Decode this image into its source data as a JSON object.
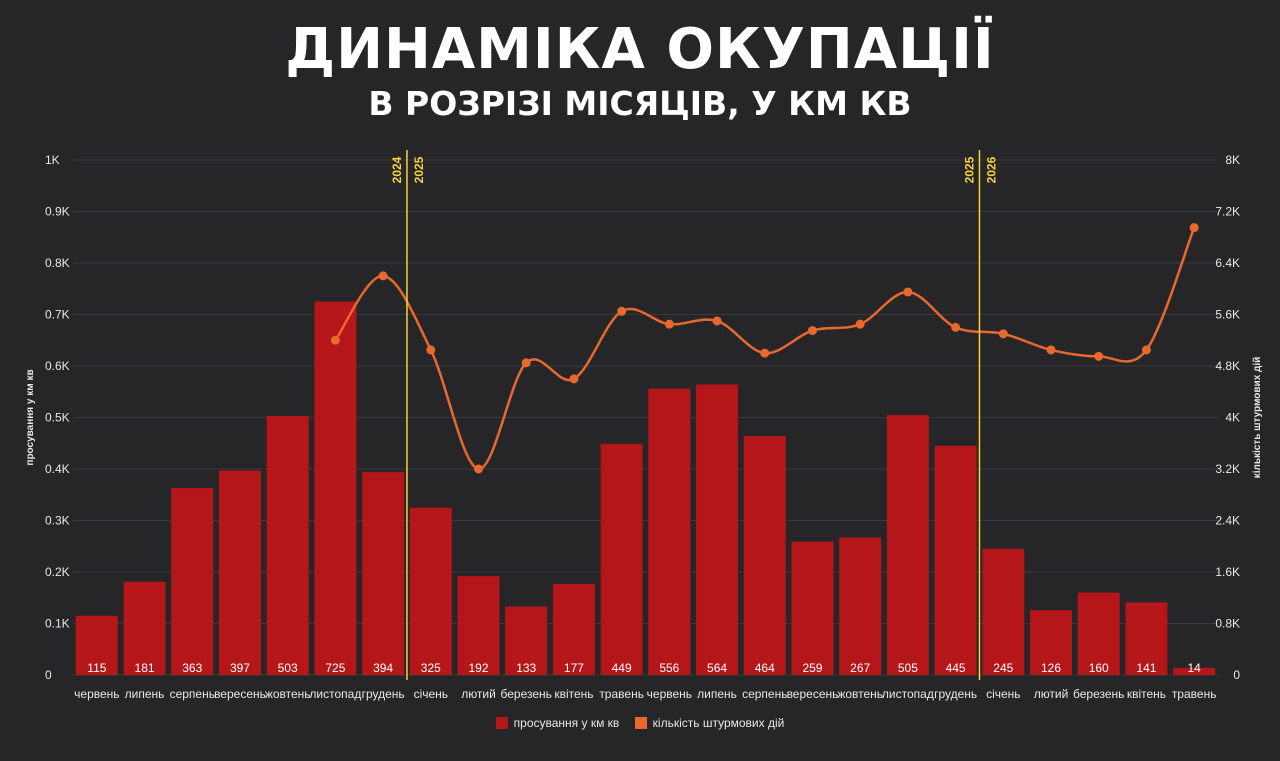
{
  "title": "ДИНАМІКА ОКУПАЦІЇ",
  "subtitle": "В РОЗРІЗІ МІСЯЦІВ, У КМ КВ",
  "colors": {
    "background": "#262629",
    "bar": "#b5161a",
    "line": "#e8692e",
    "divider": "#f5d33b",
    "grid": "#3a3a3e"
  },
  "chart_data": {
    "type": "bar",
    "categories": [
      "червень",
      "липень",
      "серпень",
      "вересень",
      "жовтень",
      "листопад",
      "грудень",
      "січень",
      "лютий",
      "березень",
      "квітень",
      "травень",
      "червень",
      "липень",
      "серпень",
      "вересень",
      "жовтень",
      "листопад",
      "грудень",
      "січень",
      "лютий",
      "березень",
      "квітень",
      "травень"
    ],
    "series": [
      {
        "name": "просування у км кв",
        "type": "bar",
        "axis": "left",
        "values": [
          115,
          181,
          363,
          397,
          503,
          725,
          394,
          325,
          192,
          133,
          177,
          449,
          556,
          564,
          464,
          259,
          267,
          505,
          445,
          245,
          126,
          160,
          141,
          14
        ],
        "labels": [
          "115",
          "181",
          "363",
          "397",
          "503",
          "725",
          "394",
          "325",
          "192",
          "133",
          "177",
          "449",
          "556",
          "564",
          "464",
          "259",
          "267",
          "505",
          "445",
          "245",
          "126",
          "160",
          "141",
          "14"
        ]
      },
      {
        "name": "кількість штурмових дій",
        "type": "line",
        "axis": "right",
        "values": [
          null,
          null,
          null,
          null,
          null,
          5200,
          6200,
          5050,
          3200,
          4850,
          4600,
          5650,
          5450,
          5500,
          5000,
          5350,
          5450,
          5950,
          5400,
          5300,
          5050,
          4950,
          5050,
          6950
        ]
      }
    ],
    "ylabel_left": "просування у км кв",
    "ylabel_right": "кількість штурмових дій",
    "ylim_left": [
      0,
      1000
    ],
    "ylim_right": [
      0,
      8000
    ],
    "yticks_left": [
      "0",
      "0.1K",
      "0.2K",
      "0.3K",
      "0.4K",
      "0.5K",
      "0.6K",
      "0.7K",
      "0.8K",
      "0.9K",
      "1K"
    ],
    "yticks_right": [
      "0",
      "0.8K",
      "1.6K",
      "2.4K",
      "3.2K",
      "4K",
      "4.8K",
      "5.6K",
      "6.4K",
      "7.2K",
      "8K"
    ],
    "dividers": [
      {
        "after_index": 6,
        "left_label": "2024",
        "right_label": "2025"
      },
      {
        "after_index": 18,
        "left_label": "2025",
        "right_label": "2026"
      }
    ],
    "grid": true,
    "legend": "bottom"
  }
}
